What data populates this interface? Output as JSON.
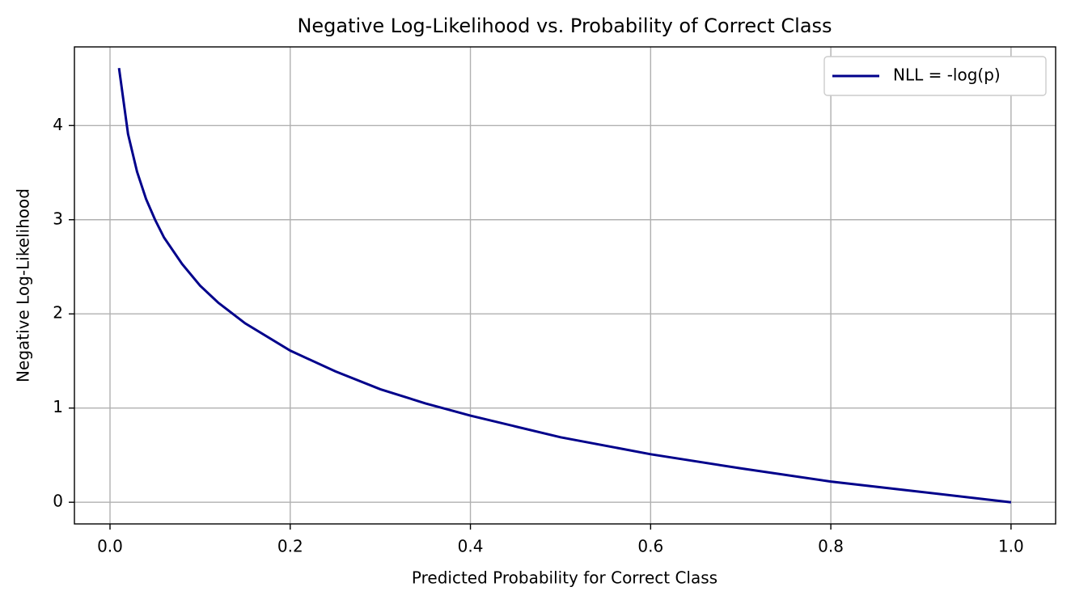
{
  "chart_data": {
    "type": "line",
    "title": "Negative Log-Likelihood vs. Probability of Correct Class",
    "x_label": "Predicted Probability for Correct Class",
    "y_label": "Negative Log-Likelihood",
    "x": [
      0.01,
      0.02,
      0.03,
      0.04,
      0.05,
      0.06,
      0.08,
      0.1,
      0.12,
      0.15,
      0.2,
      0.25,
      0.3,
      0.35,
      0.4,
      0.5,
      0.6,
      0.7,
      0.8,
      0.9,
      1.0
    ],
    "series": [
      {
        "name": "NLL = -log(p)",
        "color": "#00008b",
        "values": [
          4.61,
          3.91,
          3.51,
          3.22,
          3.0,
          2.81,
          2.53,
          2.3,
          2.12,
          1.9,
          1.61,
          1.39,
          1.2,
          1.05,
          0.92,
          0.69,
          0.51,
          0.36,
          0.22,
          0.11,
          0
        ]
      }
    ],
    "xlim": [
      -0.0395,
      1.0495
    ],
    "ylim": [
      -0.23,
      4.835
    ],
    "xticks": [
      {
        "value": 0,
        "label": "0.0"
      },
      0.2,
      0.4,
      0.6,
      0.8,
      {
        "value": 1,
        "label": "1.0"
      }
    ],
    "yticks": [
      0,
      1,
      2,
      3,
      4
    ],
    "grid": true,
    "legend": "upper right"
  }
}
